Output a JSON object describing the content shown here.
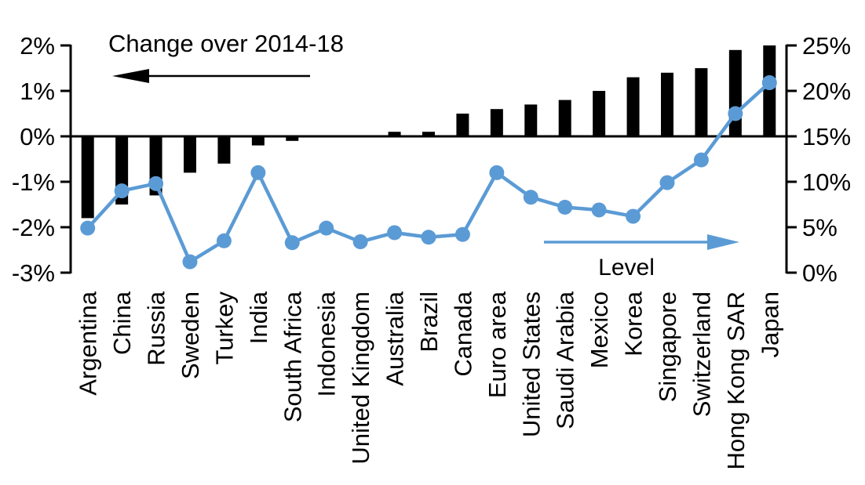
{
  "chart_data": {
    "type": "bar+line",
    "title": "Change over 2014-18",
    "line_label": "Level",
    "categories": [
      "Argentina",
      "China",
      "Russia",
      "Sweden",
      "Turkey",
      "India",
      "South Africa",
      "Indonesia",
      "United Kingdom",
      "Australia",
      "Brazil",
      "Canada",
      "Euro area",
      "United States",
      "Saudi Arabia",
      "Mexico",
      "Korea",
      "Singapore",
      "Switzerland",
      "Hong Kong SAR",
      "Japan"
    ],
    "series": [
      {
        "name": "Change over 2014-18",
        "type": "bar",
        "axis": "left",
        "color": "#000000",
        "values": [
          -1.8,
          -1.5,
          -1.3,
          -0.8,
          -0.6,
          -0.2,
          -0.1,
          0,
          0,
          0.1,
          0.1,
          0.5,
          0.6,
          0.7,
          0.8,
          1.0,
          1.3,
          1.4,
          1.5,
          1.9,
          2.0
        ]
      },
      {
        "name": "Level",
        "type": "line",
        "axis": "right",
        "color": "#5b9bd5",
        "values": [
          4.9,
          9.0,
          9.8,
          1.2,
          3.5,
          11.0,
          3.3,
          4.9,
          3.4,
          4.4,
          3.9,
          4.2,
          11.0,
          8.3,
          7.2,
          6.9,
          6.2,
          9.9,
          12.4,
          17.5,
          20.9
        ]
      }
    ],
    "left_axis": {
      "min": -3,
      "max": 2,
      "tick_step": 1,
      "tick_labels": [
        "2%",
        "1%",
        "0%",
        "-1%",
        "-2%",
        "-3%"
      ]
    },
    "right_axis": {
      "min": 0,
      "max": 25,
      "tick_step": 5,
      "tick_labels": [
        "25%",
        "20%",
        "15%",
        "10%",
        "5%",
        "0%"
      ]
    },
    "grid": false,
    "legend_position": "in-chart arrow annotations",
    "annotations": [
      {
        "text": "Change over 2014-18",
        "arrow_direction": "left",
        "arrow_color": "#000000"
      },
      {
        "text": "Level",
        "arrow_direction": "right",
        "arrow_color": "#5b9bd5"
      }
    ]
  },
  "colors": {
    "background": "#ffffff",
    "bar": "#000000",
    "line": "#5b9bd5",
    "axis": "#000000",
    "text": "#000000"
  }
}
